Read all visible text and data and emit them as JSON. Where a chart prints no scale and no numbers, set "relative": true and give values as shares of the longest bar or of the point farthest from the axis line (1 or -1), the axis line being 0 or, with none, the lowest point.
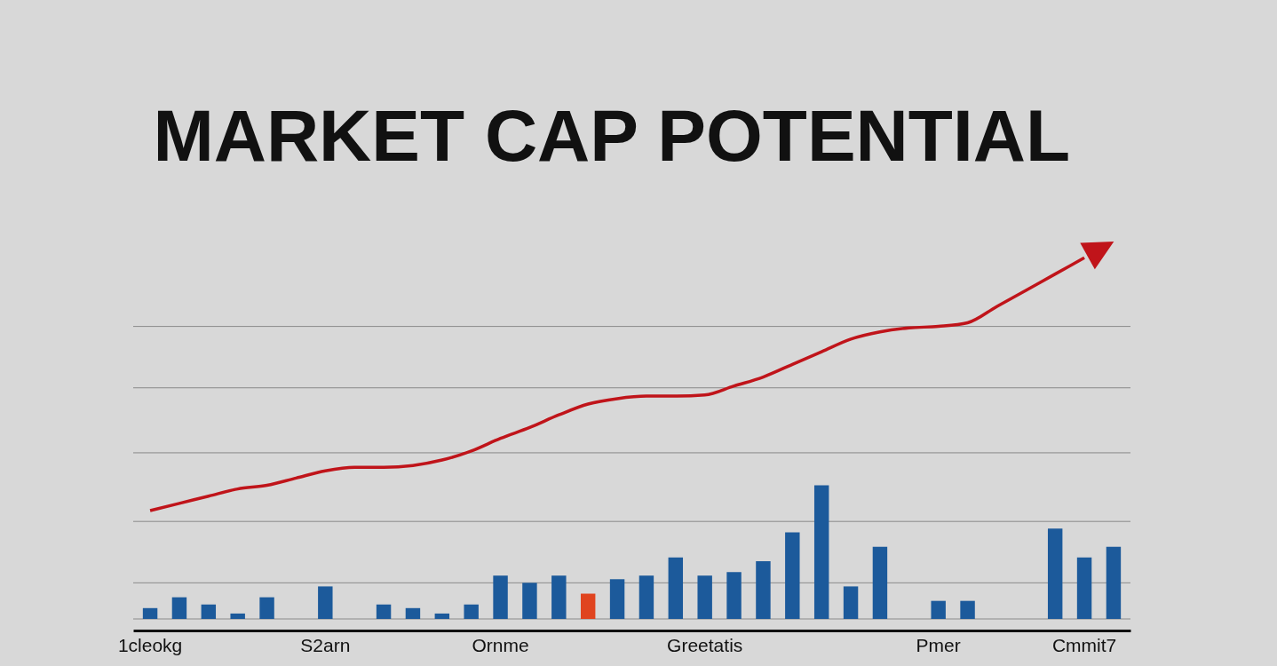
{
  "chart_data": {
    "type": "bar",
    "title": "MARKET CAP POTENTIAL",
    "relative": true,
    "ref_lines": [
      {
        "axis": "y",
        "value": 0,
        "color": "#8a8a8a"
      },
      {
        "axis": "y",
        "value": 0.1,
        "color": "#8a8a8a"
      },
      {
        "axis": "y",
        "value": 0.27,
        "color": "#8a8a8a"
      },
      {
        "axis": "y",
        "value": 0.46,
        "color": "#8a8a8a"
      },
      {
        "axis": "y",
        "value": 0.64,
        "color": "#8a8a8a"
      },
      {
        "axis": "y",
        "value": 0.81,
        "color": "#8a8a8a"
      }
    ],
    "categories": [
      "1cleokg",
      null,
      null,
      null,
      null,
      null,
      "S2arn",
      null,
      null,
      null,
      null,
      null,
      "Ornme",
      null,
      null,
      null,
      null,
      null,
      null,
      "Greetatis",
      null,
      null,
      null,
      null,
      null,
      null,
      null,
      "Pmer",
      null,
      null,
      null,
      null,
      "Cmmit7",
      null
    ],
    "series": [
      {
        "type": "bar",
        "colors": [
          "#1c5a9b",
          "#1c5a9b",
          "#1c5a9b",
          "#1c5a9b",
          "#1c5a9b",
          "#1c5a9b",
          "#1c5a9b",
          "#1c5a9b",
          "#1c5a9b",
          "#1c5a9b",
          "#1c5a9b",
          "#1c5a9b",
          "#1c5a9b",
          "#1c5a9b",
          "#1c5a9b",
          "#e0441f",
          "#1c5a9b",
          "#1c5a9b",
          "#1c5a9b",
          "#1c5a9b",
          "#1c5a9b",
          "#1c5a9b",
          "#1c5a9b",
          "#1c5a9b",
          "#1c5a9b",
          "#1c5a9b",
          "#1c5a9b",
          "#1c5a9b",
          "#1c5a9b",
          "#1c5a9b",
          "#1c5a9b",
          "#1c5a9b",
          "#1c5a9b",
          "#1c5a9b"
        ],
        "values": [
          0.03,
          0.06,
          0.04,
          0.015,
          0.06,
          null,
          0.09,
          null,
          0.04,
          0.03,
          0.015,
          0.04,
          0.12,
          0.1,
          0.12,
          0.07,
          0.11,
          0.12,
          0.17,
          0.12,
          0.13,
          0.16,
          0.24,
          0.37,
          0.09,
          0.2,
          null,
          0.05,
          0.05,
          null,
          null,
          0.25,
          0.17,
          0.2
        ]
      },
      {
        "type": "line",
        "color": "#c0141a",
        "values": [
          0.3,
          0.32,
          0.34,
          0.36,
          0.37,
          0.39,
          0.41,
          0.42,
          0.42,
          0.425,
          0.44,
          0.465,
          0.5,
          0.53,
          0.565,
          0.595,
          0.61,
          0.617,
          0.617,
          0.62,
          0.645,
          0.67,
          0.705,
          0.74,
          0.775,
          0.795,
          0.806,
          0.81,
          0.82,
          0.865,
          0.91,
          0.955,
          1.0,
          null
        ]
      }
    ]
  }
}
